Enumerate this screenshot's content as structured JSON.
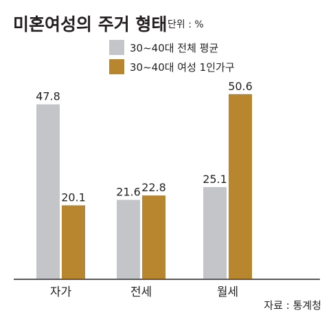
{
  "chart_data": {
    "type": "bar",
    "title": "미혼여성의 주거 형태",
    "unit": "단위 : %",
    "categories": [
      "자가",
      "전세",
      "월세"
    ],
    "series": [
      {
        "name": "30~40대 전체 평균",
        "values": [
          47.8,
          21.6,
          25.1
        ],
        "color": "#c4c5c8"
      },
      {
        "name": "30~40대 여성 1인가구",
        "values": [
          20.1,
          22.8,
          50.6
        ],
        "color": "#b8862e"
      }
    ],
    "value_labels": [
      [
        "47.8",
        "21.6",
        "25.1"
      ],
      [
        "20.1",
        "22.8",
        "50.6"
      ]
    ],
    "ylim": [
      0,
      55
    ],
    "source": "자료 : 통계청"
  }
}
